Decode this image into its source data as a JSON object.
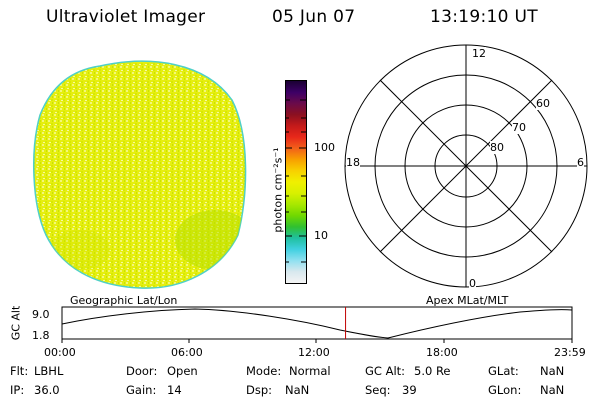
{
  "header": {
    "instrument": "Ultraviolet Imager",
    "date": "05 Jun 07",
    "time": "13:19:10 UT"
  },
  "image_panel": {
    "label": "Geographic Lat/Lon",
    "fill_color": "#e8f000",
    "edge_color": "#4fd0c8"
  },
  "colorbar": {
    "unit_label": "photon cm⁻²s⁻¹",
    "tick_100": "100",
    "tick_10": "10",
    "colors": [
      "#1a0033",
      "#3d0066",
      "#6a0a4a",
      "#8c1020",
      "#c41a1a",
      "#e8281a",
      "#f2601a",
      "#f8a000",
      "#f8d000",
      "#f0f000",
      "#d8f000",
      "#a8e800",
      "#70d800",
      "#30c030",
      "#20c0a0",
      "#40d0e0",
      "#90e0f0",
      "#d8e8ee",
      "#f4f4f4"
    ]
  },
  "polar_panel": {
    "label": "Apex MLat/MLT",
    "mlt_labels": {
      "top": "12",
      "left": "18",
      "right": "6",
      "bottom": "0"
    },
    "mlat_labels": [
      "60",
      "70",
      "80"
    ]
  },
  "timeline": {
    "axis_label": "GC Alt",
    "y_max": "9.0",
    "y_min": "1.8",
    "x_ticks": [
      "00:00",
      "06:00",
      "12:00",
      "18:00",
      "23:59"
    ],
    "current_time_fraction": 0.556,
    "current_marker_color": "#c00000"
  },
  "info": {
    "flt_label": "Flt:",
    "flt_value": "LBHL",
    "door_label": "Door:",
    "door_value": "Open",
    "mode_label": "Mode:",
    "mode_value": "Normal",
    "gcalt_label": "GC Alt:",
    "gcalt_value": "5.0 Re",
    "glat_label": "GLat:",
    "glat_value": "NaN",
    "ip_label": "IP:",
    "ip_value": "36.0",
    "gain_label": "Gain:",
    "gain_value": "14",
    "dsp_label": "Dsp:",
    "dsp_value": "NaN",
    "seq_label": "Seq:",
    "seq_value": "39",
    "glon_label": "GLon:",
    "glon_value": "NaN"
  }
}
